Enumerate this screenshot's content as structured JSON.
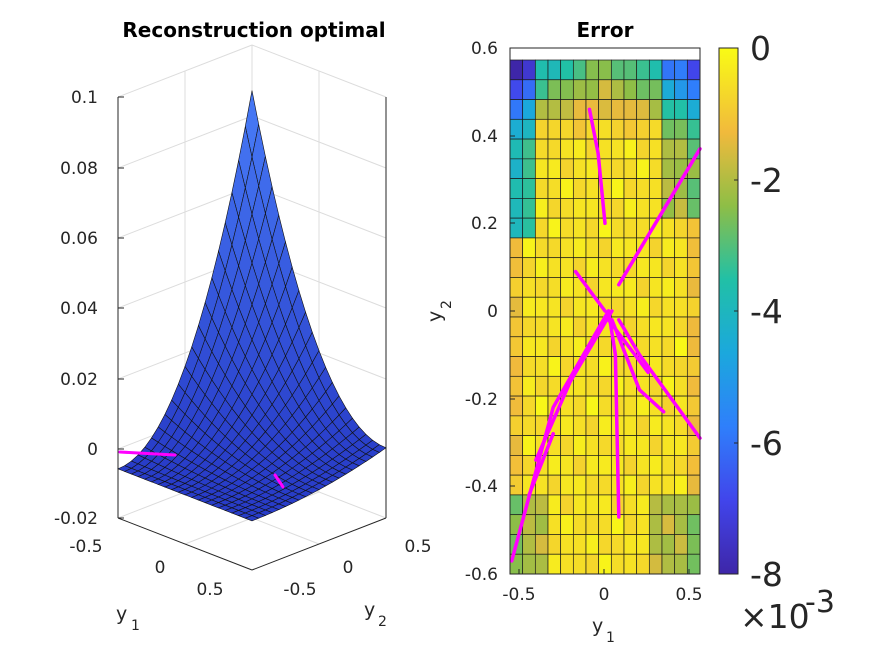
{
  "chart_data": [
    {
      "type": "surface",
      "title": "Reconstruction optimal",
      "xlabel": "y",
      "xlabel_sub": "1",
      "ylabel": "y",
      "ylabel_sub": "2",
      "zlim": [
        -0.02,
        0.1
      ],
      "z_ticks": [
        "0.1",
        "0.08",
        "0.06",
        "0.04",
        "0.02",
        "0",
        "-0.02"
      ],
      "y1_ticks": [
        "-0.5",
        "0",
        "0.5"
      ],
      "y2_ticks": [
        "-0.5",
        "0",
        "0.5"
      ],
      "surface_color": "#3b4be3",
      "trajectory_color": "#ff00ff",
      "surface_peak": 0.081,
      "surface_min": -0.006
    },
    {
      "type": "heatmap",
      "title": "Error",
      "xlabel": "y",
      "xlabel_sub": "1",
      "ylabel": "y",
      "ylabel_sub": "2",
      "x_range": [
        -0.55,
        0.55
      ],
      "y_range": [
        -0.6,
        0.6
      ],
      "grid_cols": 15,
      "grid_rows": 26,
      "x_ticks": [
        "-0.5",
        "0",
        "0.5"
      ],
      "y_ticks": [
        "0.6",
        "0.4",
        "0.2",
        "0",
        "-0.2",
        "-0.4",
        "-0.6"
      ],
      "colorbar": {
        "ticks": [
          "0",
          "-2",
          "-4",
          "-6",
          "-8"
        ],
        "range": [
          -8,
          0
        ],
        "multiplier_prefix": "×10",
        "multiplier_exp": "-3"
      },
      "trajectory_color": "#ff00ff"
    }
  ]
}
